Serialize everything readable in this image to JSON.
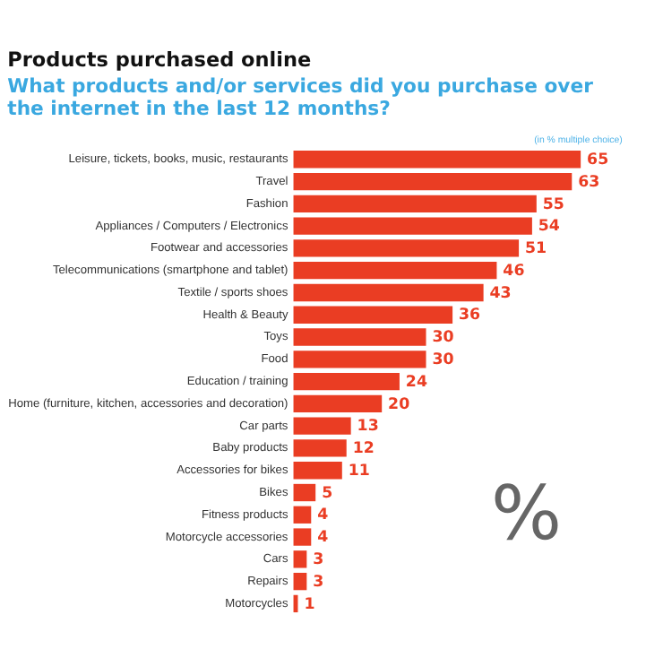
{
  "chart_data": {
    "type": "bar",
    "orientation": "horizontal",
    "title": "Products purchased online",
    "subtitle": "What products and/or services did you purchase over the internet in the last 12 months?",
    "annotations": [
      "(in % multiple choice)",
      "%"
    ],
    "categories": [
      "Leisure, tickets, books, music, restaurants",
      "Travel",
      "Fashion",
      "Appliances / Computers / Electronics",
      "Footwear and accessories",
      "Telecommunications (smartphone and tablet)",
      "Textile / sports shoes",
      "Health & Beauty",
      "Toys",
      "Food",
      "Education / training",
      "Home (furniture, kitchen, accessories and decoration)",
      "Car parts",
      "Baby products",
      "Accessories for bikes",
      "Bikes",
      "Fitness products",
      "Motorcycle accessories",
      "Cars",
      "Repairs",
      "Motorcycles"
    ],
    "values": [
      65,
      63,
      55,
      54,
      51,
      46,
      43,
      36,
      30,
      30,
      24,
      20,
      13,
      12,
      11,
      5,
      4,
      4,
      3,
      3,
      1
    ],
    "color": "#ea3d23",
    "data_labels": true,
    "tick_labels": "y"
  }
}
